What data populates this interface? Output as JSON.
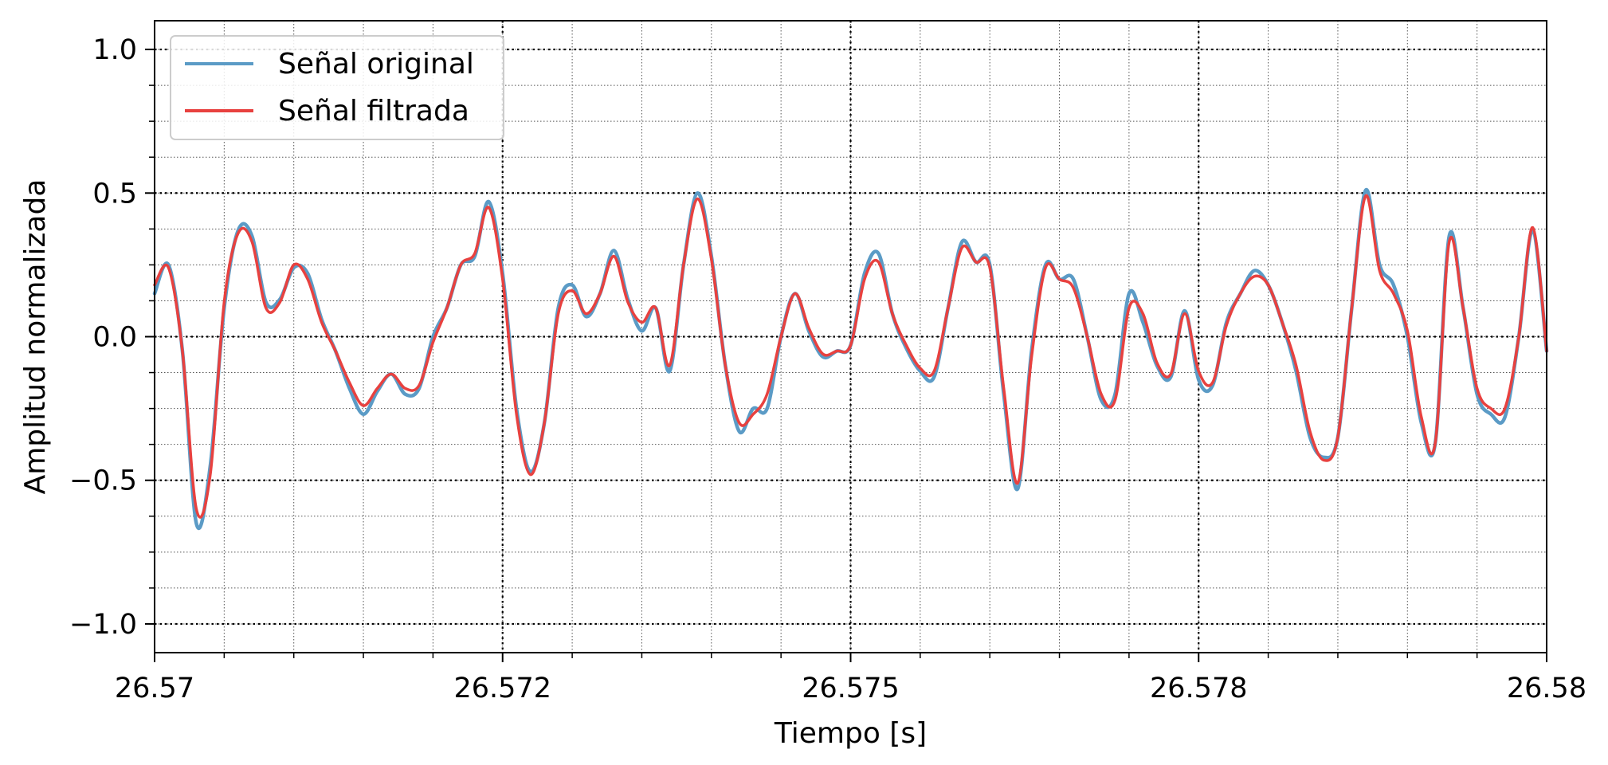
{
  "chart_data": {
    "type": "line",
    "xlabel": "Tiempo [s]",
    "ylabel": "Amplitud normalizada",
    "xlim": [
      26.57,
      26.58
    ],
    "ylim": [
      -1.1,
      1.1
    ],
    "x_ticks": [
      {
        "value": 26.57,
        "label": "26.57"
      },
      {
        "value": 26.5725,
        "label": "26.572"
      },
      {
        "value": 26.575,
        "label": "26.575"
      },
      {
        "value": 26.5775,
        "label": "26.578"
      },
      {
        "value": 26.58,
        "label": "26.58"
      }
    ],
    "y_ticks": [
      {
        "value": 1.0,
        "label": "1.0"
      },
      {
        "value": 0.5,
        "label": "0.5"
      },
      {
        "value": 0.0,
        "label": "0.0"
      },
      {
        "value": -0.5,
        "label": "−0.5"
      },
      {
        "value": -1.0,
        "label": "−1.0"
      }
    ],
    "x_minor_step": 0.0005,
    "y_minor_step": 0.125,
    "grid": true,
    "legend_position": "top-left",
    "x": [
      26.57,
      26.5701,
      26.5702,
      26.5703,
      26.5704,
      26.5705,
      26.5706,
      26.5707,
      26.5708,
      26.5709,
      26.571,
      26.5711,
      26.5712,
      26.5713,
      26.5714,
      26.5715,
      26.5716,
      26.5717,
      26.5718,
      26.5719,
      26.572,
      26.5721,
      26.5722,
      26.5723,
      26.5724,
      26.5725,
      26.5726,
      26.5727,
      26.5728,
      26.5729,
      26.573,
      26.5731,
      26.5732,
      26.5733,
      26.5734,
      26.5735,
      26.5736,
      26.5737,
      26.5738,
      26.5739,
      26.574,
      26.5741,
      26.5742,
      26.5743,
      26.5744,
      26.5745,
      26.5746,
      26.5747,
      26.5748,
      26.5749,
      26.575,
      26.5751,
      26.5752,
      26.5753,
      26.5754,
      26.5755,
      26.5756,
      26.5757,
      26.5758,
      26.5759,
      26.576,
      26.5761,
      26.5762,
      26.5763,
      26.5764,
      26.5765,
      26.5766,
      26.5767,
      26.5768,
      26.5769,
      26.577,
      26.5771,
      26.5772,
      26.5773,
      26.5774,
      26.5775,
      26.5776,
      26.5777,
      26.5778,
      26.5779,
      26.578,
      26.5781,
      26.5782,
      26.5783,
      26.5784,
      26.5785,
      26.5786,
      26.5787,
      26.5788,
      26.5789,
      26.579,
      26.5791,
      26.5792,
      26.5793,
      26.5794,
      26.5795,
      26.5796,
      26.5797,
      26.5798,
      26.5799,
      26.58
    ],
    "series": [
      {
        "name": "Señal original",
        "color": "#5b9bc6",
        "values": [
          0.15,
          0.25,
          -0.05,
          -0.65,
          -0.45,
          0.1,
          0.37,
          0.35,
          0.12,
          0.13,
          0.24,
          0.22,
          0.06,
          -0.05,
          -0.18,
          -0.27,
          -0.19,
          -0.13,
          -0.2,
          -0.18,
          0.0,
          0.1,
          0.25,
          0.28,
          0.47,
          0.22,
          -0.25,
          -0.47,
          -0.3,
          0.1,
          0.18,
          0.07,
          0.15,
          0.3,
          0.13,
          0.02,
          0.1,
          -0.12,
          0.25,
          0.5,
          0.28,
          -0.1,
          -0.33,
          -0.25,
          -0.25,
          0.0,
          0.15,
          0.02,
          -0.07,
          -0.05,
          -0.03,
          0.22,
          0.29,
          0.08,
          -0.04,
          -0.12,
          -0.14,
          0.1,
          0.33,
          0.26,
          0.25,
          -0.2,
          -0.53,
          -0.05,
          0.25,
          0.2,
          0.2,
          0.0,
          -0.22,
          -0.2,
          0.15,
          0.05,
          -0.1,
          -0.14,
          0.09,
          -0.15,
          -0.17,
          0.05,
          0.15,
          0.23,
          0.18,
          0.05,
          -0.12,
          -0.35,
          -0.42,
          -0.35,
          0.1,
          0.51,
          0.25,
          0.18,
          0.0,
          -0.3,
          -0.37,
          0.35,
          0.1,
          -0.2,
          -0.27,
          -0.28,
          0.0,
          0.37,
          -0.05
        ],
        "x_offset": 0
      },
      {
        "name": "Señal filtrada",
        "color": "#e8413f",
        "values": [
          0.18,
          0.24,
          -0.05,
          -0.6,
          -0.48,
          0.12,
          0.36,
          0.33,
          0.1,
          0.12,
          0.25,
          0.2,
          0.05,
          -0.05,
          -0.16,
          -0.24,
          -0.18,
          -0.13,
          -0.18,
          -0.17,
          -0.02,
          0.1,
          0.25,
          0.29,
          0.45,
          0.2,
          -0.27,
          -0.48,
          -0.3,
          0.08,
          0.16,
          0.08,
          0.15,
          0.28,
          0.12,
          0.05,
          0.1,
          -0.1,
          0.25,
          0.48,
          0.27,
          -0.1,
          -0.3,
          -0.27,
          -0.2,
          0.0,
          0.15,
          0.03,
          -0.06,
          -0.05,
          -0.03,
          0.2,
          0.26,
          0.08,
          -0.03,
          -0.11,
          -0.12,
          0.1,
          0.31,
          0.26,
          0.24,
          -0.18,
          -0.51,
          -0.07,
          0.24,
          0.2,
          0.17,
          0.0,
          -0.2,
          -0.22,
          0.1,
          0.08,
          -0.09,
          -0.13,
          0.08,
          -0.12,
          -0.16,
          0.04,
          0.15,
          0.21,
          0.18,
          0.05,
          -0.1,
          -0.33,
          -0.43,
          -0.35,
          0.1,
          0.49,
          0.23,
          0.15,
          0.02,
          -0.28,
          -0.37,
          0.33,
          0.1,
          -0.18,
          -0.25,
          -0.25,
          0.0,
          0.38,
          -0.05
        ],
        "x_offset": 0
      }
    ]
  }
}
